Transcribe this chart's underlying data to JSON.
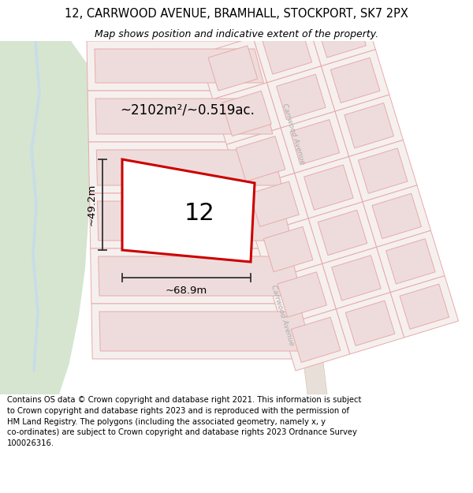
{
  "title": "12, CARRWOOD AVENUE, BRAMHALL, STOCKPORT, SK7 2PX",
  "subtitle": "Map shows position and indicative extent of the property.",
  "footer": "Contains OS data © Crown copyright and database right 2021. This information is subject\nto Crown copyright and database rights 2023 and is reproduced with the permission of\nHM Land Registry. The polygons (including the associated geometry, namely x, y\nco-ordinates) are subject to Crown copyright and database rights 2023 Ordnance Survey\n100026316.",
  "map_bg": "#f7f3ef",
  "green_color": "#d5e5d0",
  "water_color": "#c8dce8",
  "road_fill": "#e8e0d8",
  "road_edge": "#d0c8c0",
  "plot_fill": "#f5f0ee",
  "plot_edge": "#e8aaaa",
  "bldg_fill": "#eedcdc",
  "bldg_edge": "#e8aaaa",
  "highlight_color": "#cc0000",
  "dim_color": "#333333",
  "text_color": "#222222",
  "road_text_color": "#aaaaaa",
  "area_label": "~2102m²/~0.519ac.",
  "width_label": "~68.9m",
  "height_label": "~49.2m",
  "property_number": "12",
  "title_fontsize": 10.5,
  "subtitle_fontsize": 9,
  "footer_fontsize": 7.2,
  "label_fontsize": 12,
  "dim_fontsize": 9.5,
  "num_fontsize": 22,
  "figsize": [
    6.0,
    6.25
  ],
  "dpi": 100
}
